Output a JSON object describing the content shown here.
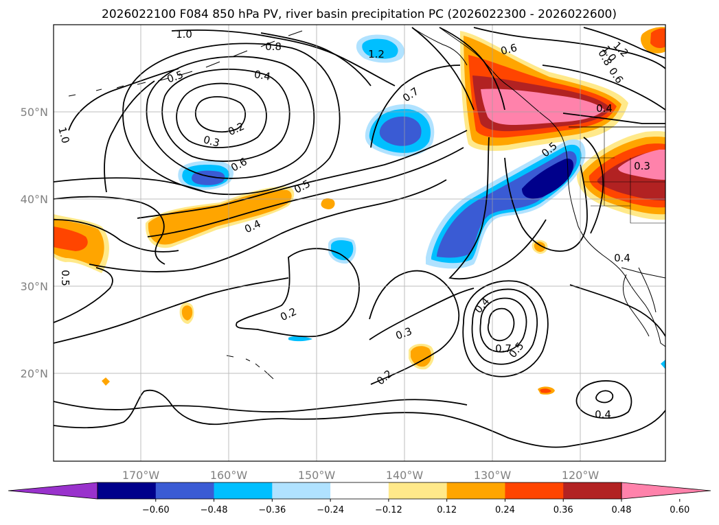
{
  "title": "2026022100 F084 850 hPa PV, river basin precipitation PC (2026022300 - 2026022600)",
  "map": {
    "lon_labels": [
      {
        "lon": -170,
        "label": "170°W"
      },
      {
        "lon": -160,
        "label": "160°W"
      },
      {
        "lon": -150,
        "label": "150°W"
      },
      {
        "lon": -140,
        "label": "140°W"
      },
      {
        "lon": -130,
        "label": "130°W"
      },
      {
        "lon": -120,
        "label": "120°W"
      }
    ],
    "lat_labels": [
      {
        "lat": 50,
        "label": "50°N"
      },
      {
        "lat": 40,
        "label": "40°N"
      },
      {
        "lat": 30,
        "label": "30°N"
      },
      {
        "lat": 20,
        "label": "20°N"
      }
    ],
    "grid": true,
    "contour_labels": [
      "1.0",
      "0.8",
      "0.5",
      "0.4",
      "0.2",
      "0.3",
      "0.6",
      "1.2",
      "0.7",
      "0.6",
      "0.8",
      "1.0",
      "1.2",
      "0.6",
      "0.4",
      "0.5",
      "0.3",
      "0.5",
      "0.4",
      "1.0",
      "0.5",
      "0.2",
      "0.4",
      "0.3",
      "0.2",
      "0.7",
      "0.5",
      "0.4",
      "0.4"
    ]
  },
  "colorbar": {
    "extend": "both",
    "colors": [
      "#9932cc",
      "#00008b",
      "#3a5bd4",
      "#00bfff",
      "#b0e2ff",
      "#ffffff",
      "#ffe98a",
      "#ffa500",
      "#ff4500",
      "#b22222",
      "#ff82ab"
    ],
    "ticks": [
      "−0.60",
      "−0.48",
      "−0.36",
      "−0.24",
      "−0.12",
      "0.12",
      "0.24",
      "0.36",
      "0.48",
      "0.60"
    ]
  }
}
